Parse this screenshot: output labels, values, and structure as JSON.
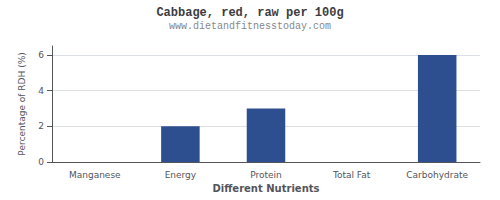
{
  "chart_data": {
    "type": "bar",
    "title": "Cabbage, red, raw per 100g",
    "subtitle": "www.dietandfitnesstoday.com",
    "xlabel": "Different Nutrients",
    "ylabel": "Percentage of RDH (%)",
    "categories": [
      "Manganese",
      "Energy",
      "Protein",
      "Total Fat",
      "Carbohydrate"
    ],
    "values": [
      0,
      2.0,
      3.0,
      0,
      6.0
    ],
    "color": "#2e4f8f",
    "ylim": [
      0,
      6.5
    ],
    "yticks": [
      0,
      2,
      4,
      6
    ],
    "grid": true
  }
}
